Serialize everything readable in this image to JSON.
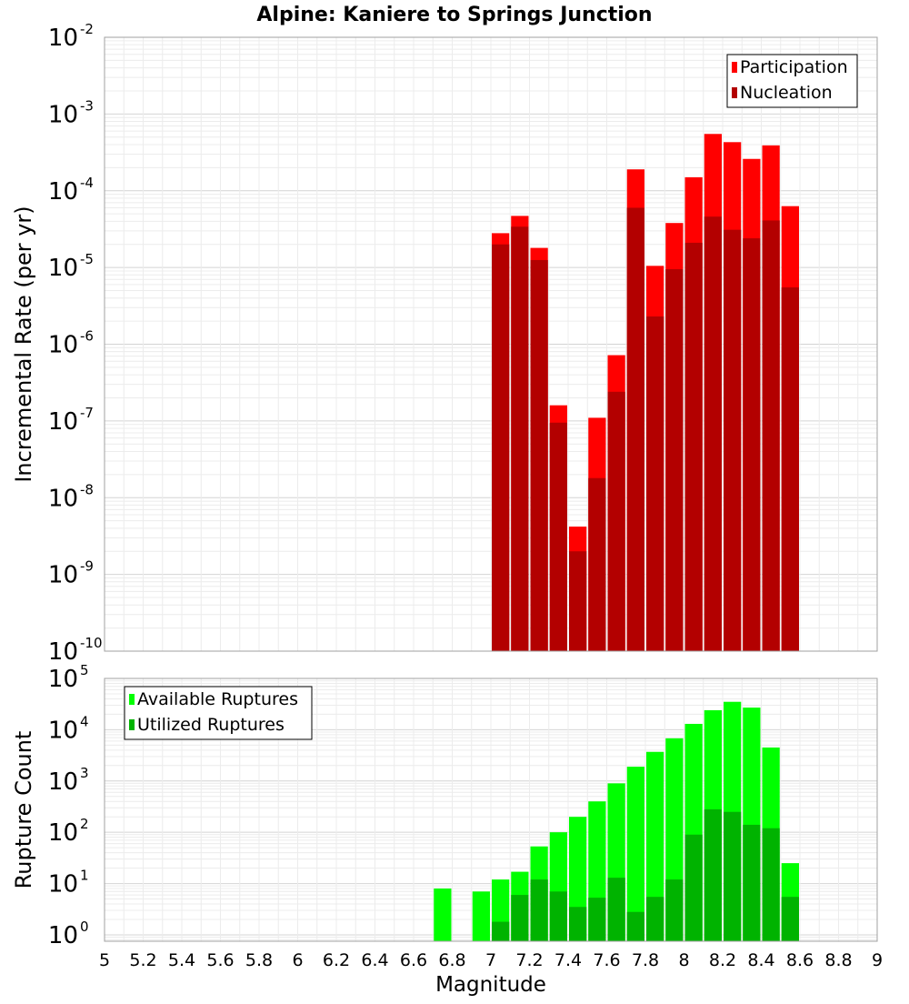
{
  "title": "Alpine: Kaniere to Springs Junction",
  "chart_data": [
    {
      "type": "bar",
      "scale": "log",
      "ylabel": "Incremental Rate (per yr)",
      "xlabel": "",
      "xlim": [
        5,
        9
      ],
      "ylim": [
        1e-10,
        0.01
      ],
      "y_ticks": [
        {
          "base": "10",
          "exp": "-10"
        },
        {
          "base": "10",
          "exp": "-9"
        },
        {
          "base": "10",
          "exp": "-8"
        },
        {
          "base": "10",
          "exp": "-7"
        },
        {
          "base": "10",
          "exp": "-6"
        },
        {
          "base": "10",
          "exp": "-5"
        },
        {
          "base": "10",
          "exp": "-4"
        },
        {
          "base": "10",
          "exp": "-3"
        },
        {
          "base": "10",
          "exp": "-2"
        }
      ],
      "legend_position": "top-right",
      "grid": true,
      "x": [
        7.05,
        7.15,
        7.25,
        7.35,
        7.45,
        7.55,
        7.65,
        7.75,
        7.85,
        7.95,
        8.05,
        8.15,
        8.25,
        8.35,
        8.45,
        8.55
      ],
      "series": [
        {
          "name": "Participation",
          "color": "#ff0000",
          "values": [
            2.8e-05,
            4.7e-05,
            1.8e-05,
            1.6e-07,
            4.2e-09,
            1.1e-07,
            7.2e-07,
            0.00019,
            1.05e-05,
            3.8e-05,
            0.00015,
            0.00055,
            0.00043,
            0.00026,
            0.00039,
            6.3e-05
          ]
        },
        {
          "name": "Nucleation",
          "color": "#b30000",
          "values": [
            2e-05,
            3.4e-05,
            1.25e-05,
            9.5e-08,
            2e-09,
            1.8e-08,
            2.4e-07,
            6e-05,
            2.3e-06,
            9.5e-06,
            2.1e-05,
            4.6e-05,
            3.1e-05,
            2.4e-05,
            4.1e-05,
            5.5e-06
          ]
        }
      ]
    },
    {
      "type": "bar",
      "scale": "log",
      "ylabel": "Rupture Count",
      "xlabel": "Magnitude",
      "xlim": [
        5,
        9
      ],
      "ylim": [
        0.75,
        100000.0
      ],
      "y_ticks": [
        {
          "base": "10",
          "exp": "0"
        },
        {
          "base": "10",
          "exp": "1"
        },
        {
          "base": "10",
          "exp": "2"
        },
        {
          "base": "10",
          "exp": "3"
        },
        {
          "base": "10",
          "exp": "4"
        },
        {
          "base": "10",
          "exp": "5"
        }
      ],
      "x_ticks": [
        "5",
        "5.2",
        "5.4",
        "5.6",
        "5.8",
        "6",
        "6.2",
        "6.4",
        "6.6",
        "6.8",
        "7",
        "7.2",
        "7.4",
        "7.6",
        "7.8",
        "8",
        "8.2",
        "8.4",
        "8.6",
        "8.8",
        "9"
      ],
      "legend_position": "top-left",
      "grid": true,
      "x": [
        6.75,
        6.95,
        7.05,
        7.15,
        7.25,
        7.35,
        7.45,
        7.55,
        7.65,
        7.75,
        7.85,
        7.95,
        8.05,
        8.15,
        8.25,
        8.35,
        8.45,
        8.55
      ],
      "series": [
        {
          "name": "Available Ruptures",
          "color": "#00ff00",
          "values": [
            8,
            7,
            12,
            17,
            53,
            100,
            200,
            400,
            900,
            1900,
            3700,
            6800,
            13000,
            24000,
            35000,
            27000,
            4500,
            25
          ]
        },
        {
          "name": "Utilized Ruptures",
          "color": "#00b300",
          "values": [
            null,
            null,
            1.8,
            6,
            12,
            7,
            3.5,
            5.3,
            13,
            2.8,
            5.5,
            12,
            90,
            280,
            250,
            140,
            120,
            5.5
          ]
        }
      ]
    }
  ]
}
